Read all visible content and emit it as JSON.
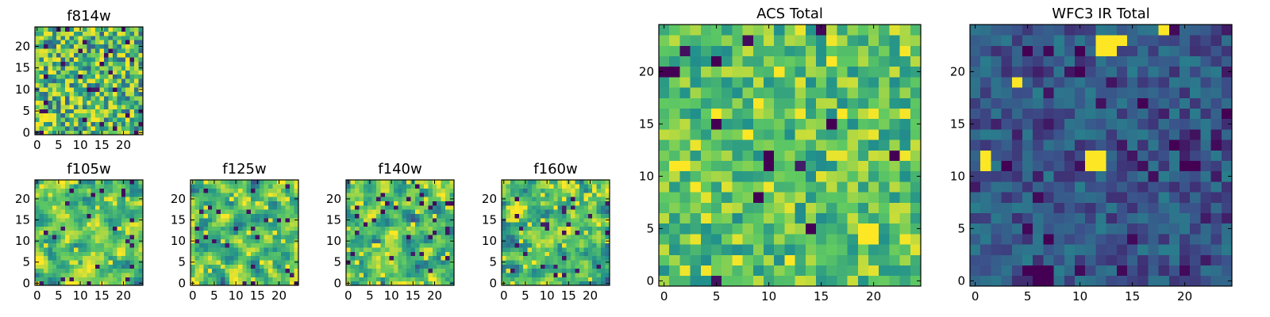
{
  "figure": {
    "colormap": "viridis",
    "colormap_stops": [
      "#440154",
      "#3b528b",
      "#21918c",
      "#5ec962",
      "#fde725"
    ],
    "axes_color": "#000000",
    "background": "#ffffff"
  },
  "chart_data": [
    {
      "id": "f814w",
      "type": "heatmap",
      "title": "f814w",
      "grid_size": 25,
      "xlim": [
        0,
        24
      ],
      "ylim": [
        0,
        24
      ],
      "xticks": [
        0,
        5,
        10,
        15,
        20
      ],
      "yticks": [
        0,
        5,
        10,
        15,
        20
      ],
      "value_range": [
        0,
        1
      ],
      "mean": 0.66,
      "spread": 0.22,
      "seed": 11,
      "dark_pixel_fraction": 0.05,
      "bright_pixel_fraction": 0.08,
      "smooth": false,
      "values": []
    },
    {
      "id": "f105w",
      "type": "heatmap",
      "title": "f105w",
      "grid_size": 25,
      "xlim": [
        0,
        24
      ],
      "ylim": [
        0,
        24
      ],
      "xticks": [
        0,
        5,
        10,
        15,
        20
      ],
      "yticks": [
        0,
        5,
        10,
        15,
        20
      ],
      "value_range": [
        0,
        1
      ],
      "mean": 0.68,
      "spread": 0.2,
      "seed": 23,
      "dark_pixel_fraction": 0.03,
      "bright_pixel_fraction": 0.06,
      "smooth": true,
      "values": []
    },
    {
      "id": "f125w",
      "type": "heatmap",
      "title": "f125w",
      "grid_size": 25,
      "xlim": [
        0,
        24
      ],
      "ylim": [
        0,
        24
      ],
      "xticks": [
        0,
        5,
        10,
        15,
        20
      ],
      "yticks": [
        0,
        5,
        10,
        15,
        20
      ],
      "value_range": [
        0,
        1
      ],
      "mean": 0.7,
      "spread": 0.2,
      "seed": 37,
      "dark_pixel_fraction": 0.03,
      "bright_pixel_fraction": 0.06,
      "smooth": true,
      "values": []
    },
    {
      "id": "f140w",
      "type": "heatmap",
      "title": "f140w",
      "grid_size": 25,
      "xlim": [
        0,
        24
      ],
      "ylim": [
        0,
        24
      ],
      "xticks": [
        0,
        5,
        10,
        15,
        20
      ],
      "yticks": [
        0,
        5,
        10,
        15,
        20
      ],
      "value_range": [
        0,
        1
      ],
      "mean": 0.68,
      "spread": 0.21,
      "seed": 41,
      "dark_pixel_fraction": 0.04,
      "bright_pixel_fraction": 0.06,
      "smooth": true,
      "values": []
    },
    {
      "id": "f160w",
      "type": "heatmap",
      "title": "f160w",
      "grid_size": 25,
      "xlim": [
        0,
        24
      ],
      "ylim": [
        0,
        24
      ],
      "xticks": [
        0,
        5,
        10,
        15,
        20
      ],
      "yticks": [
        0,
        5,
        10,
        15,
        20
      ],
      "value_range": [
        0,
        1
      ],
      "mean": 0.68,
      "spread": 0.21,
      "seed": 53,
      "dark_pixel_fraction": 0.04,
      "bright_pixel_fraction": 0.06,
      "smooth": true,
      "values": []
    },
    {
      "id": "acs-total",
      "type": "heatmap",
      "title": "ACS Total",
      "grid_size": 25,
      "xlim": [
        0,
        24
      ],
      "ylim": [
        0,
        24
      ],
      "xticks": [
        0,
        5,
        10,
        15,
        20
      ],
      "yticks": [
        0,
        5,
        10,
        15,
        20
      ],
      "value_range": [
        0,
        1
      ],
      "mean": 0.7,
      "spread": 0.14,
      "seed": 67,
      "dark_pixel_fraction": 0.02,
      "bright_pixel_fraction": 0.05,
      "smooth": false,
      "values": [],
      "dark_pixels": [
        [
          0,
          20
        ],
        [
          1,
          20
        ],
        [
          5,
          15
        ],
        [
          16,
          15
        ],
        [
          10,
          12
        ],
        [
          10,
          11
        ],
        [
          22,
          12
        ],
        [
          5,
          21
        ],
        [
          9,
          8
        ],
        [
          14,
          5
        ]
      ],
      "bright_pixels": [
        [
          19,
          4
        ],
        [
          20,
          4
        ],
        [
          19,
          5
        ],
        [
          20,
          5
        ],
        [
          1,
          11
        ],
        [
          2,
          11
        ],
        [
          5,
          16
        ],
        [
          17,
          16
        ],
        [
          16,
          21
        ],
        [
          8,
          14
        ],
        [
          12,
          2
        ]
      ]
    },
    {
      "id": "wfc3-ir-total",
      "type": "heatmap",
      "title": "WFC3 IR Total",
      "grid_size": 25,
      "xlim": [
        0,
        24
      ],
      "ylim": [
        0,
        24
      ],
      "xticks": [
        0,
        5,
        10,
        15,
        20
      ],
      "yticks": [
        0,
        5,
        10,
        15,
        20
      ],
      "value_range": [
        0,
        1
      ],
      "mean": 0.28,
      "spread": 0.09,
      "seed": 79,
      "dark_pixel_fraction": 0.06,
      "bright_pixel_fraction": 0.0,
      "smooth": false,
      "values": [],
      "dark_pixels": [
        [
          5,
          1
        ],
        [
          6,
          1
        ],
        [
          7,
          1
        ],
        [
          6,
          0
        ],
        [
          7,
          0
        ],
        [
          5,
          22
        ],
        [
          10,
          22
        ],
        [
          16,
          17
        ],
        [
          7,
          4
        ],
        [
          19,
          13
        ],
        [
          20,
          11
        ],
        [
          21,
          11
        ],
        [
          24,
          16
        ],
        [
          3,
          11
        ],
        [
          10,
          20
        ]
      ],
      "bright_pixels": [
        [
          11,
          11
        ],
        [
          12,
          11
        ],
        [
          11,
          12
        ],
        [
          12,
          12
        ],
        [
          1,
          12
        ],
        [
          12,
          22
        ],
        [
          13,
          22
        ],
        [
          14,
          23
        ],
        [
          18,
          24
        ],
        [
          1,
          11
        ],
        [
          13,
          23
        ],
        [
          4,
          19
        ],
        [
          12,
          23
        ]
      ]
    }
  ]
}
